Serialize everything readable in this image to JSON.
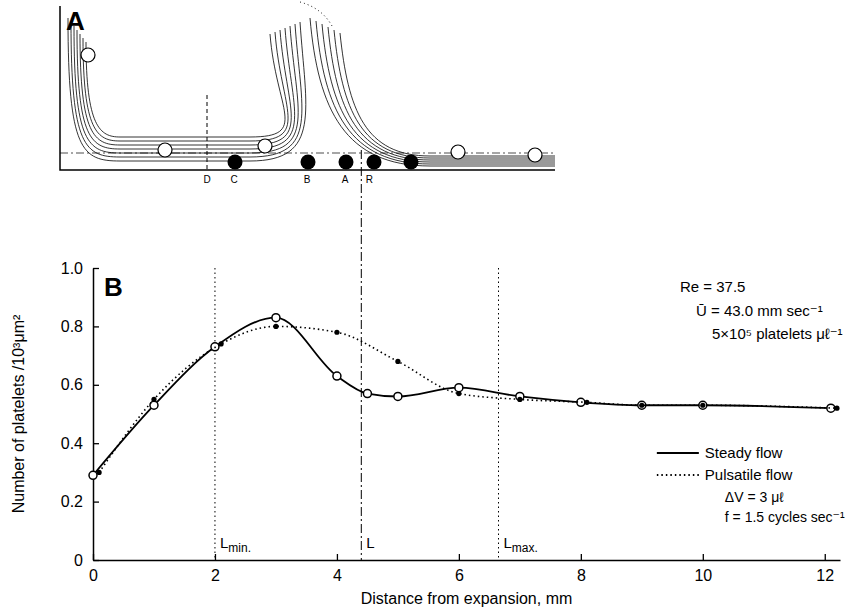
{
  "diagram": {
    "panel_label": "A",
    "labels": [
      "D",
      "C",
      "B",
      "A",
      "R"
    ]
  },
  "chart_data": {
    "type": "line",
    "panel_label": "B",
    "x_label": "Distance from expansion, mm",
    "y_label": "Number of platelets /10³μm²",
    "xlim": [
      0,
      12.25
    ],
    "xticks": [
      0,
      2,
      4,
      6,
      8,
      10,
      12
    ],
    "ylim": [
      0,
      1.0
    ],
    "yticks": [
      0,
      0.2,
      0.4,
      0.6,
      0.8,
      {
        "value": 1.0,
        "label": "1.0"
      }
    ],
    "annotations": [
      "Re = 37.5",
      "Ū = 43.0 mm sec⁻¹",
      "5×10⁵ platelets μℓ⁻¹"
    ],
    "reference_lines": [
      {
        "x": 2.0,
        "label": "L",
        "label_sub": "min.",
        "line_style": "dotted"
      },
      {
        "x": 4.4,
        "label": "L",
        "line_style": "dash-dot"
      },
      {
        "x": 6.65,
        "label": "L",
        "label_sub": "max.",
        "line_style": "dotted"
      }
    ],
    "legend": "lower right",
    "series": [
      {
        "name": "Steady flow",
        "color": "#000000",
        "marker": "open-circle",
        "line_style": "solid",
        "x": [
          0,
          1,
          2,
          3,
          4,
          4.5,
          5,
          6,
          7,
          8,
          9,
          10,
          12.1
        ],
        "values": [
          0.29,
          0.53,
          0.73,
          0.83,
          0.63,
          0.57,
          0.56,
          0.59,
          0.56,
          0.54,
          0.53,
          0.53,
          0.52
        ]
      },
      {
        "name": "Pulsatile flow",
        "color": "#000000",
        "marker": "dot",
        "line_style": "dotted",
        "notes": [
          "ΔV = 3 μℓ",
          "f = 1.5 cycles sec⁻¹"
        ],
        "x": [
          0.1,
          1,
          2.1,
          3,
          4,
          5,
          6,
          7,
          8.1,
          9,
          10,
          12.2
        ],
        "values": [
          0.3,
          0.55,
          0.74,
          0.8,
          0.78,
          0.68,
          0.57,
          0.55,
          0.54,
          0.53,
          0.53,
          0.52
        ]
      }
    ]
  }
}
